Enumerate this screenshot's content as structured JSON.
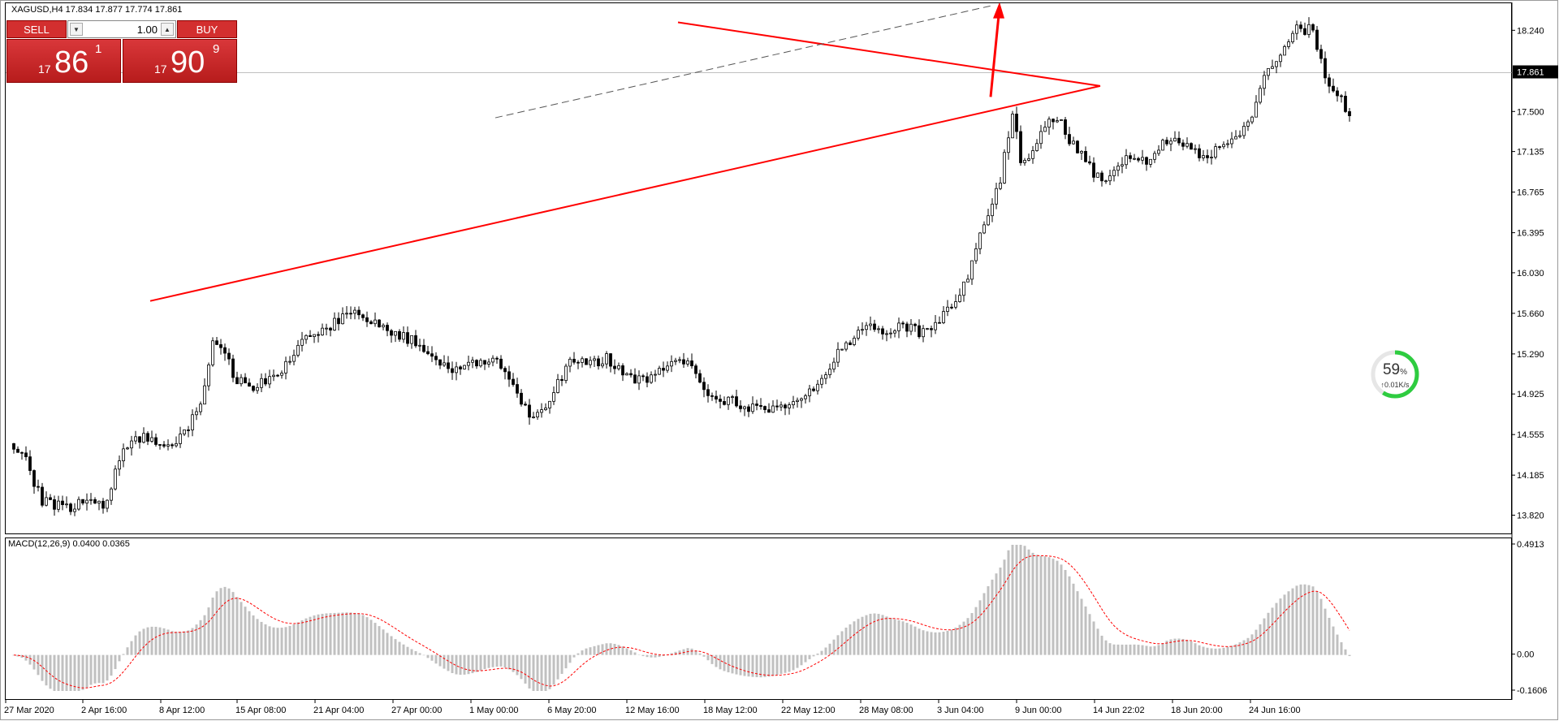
{
  "window": {
    "symbol_line": "XAGUSD,H4  17.834 17.877 17.774 17.861"
  },
  "trade_panel": {
    "sell_label": "SELL",
    "buy_label": "BUY",
    "lot_value": "1.00",
    "sell_price": {
      "prefix": "17",
      "big": "86",
      "sup": "1"
    },
    "buy_price": {
      "prefix": "17",
      "big": "90",
      "sup": "9"
    }
  },
  "indicator": {
    "label": "MACD(12,26,9) 0.0400 0.0365"
  },
  "network_widget": {
    "percent": "59",
    "percent_sign": "%",
    "speed": "↑0.01K/s",
    "level": 0.59
  },
  "colors": {
    "trendline": "#ff0000",
    "candle": "#000000",
    "macd_hist": "#c0c0c0",
    "signal": "#ff0000",
    "dashed_channel": "#555555",
    "bid_line": "#c0c0c0"
  },
  "chart_data": {
    "type": "candlestick",
    "symbol": "XAGUSD",
    "timeframe": "H4",
    "ohlc_header": {
      "open": 17.834,
      "high": 17.877,
      "low": 17.774,
      "close": 17.861
    },
    "current_price": 17.861,
    "price_ticks": [
      "18.240",
      "17.500",
      "17.135",
      "16.765",
      "16.395",
      "16.030",
      "15.660",
      "15.290",
      "14.925",
      "14.555",
      "14.185",
      "13.820"
    ],
    "price_range": [
      13.72,
      18.42
    ],
    "time_ticks": [
      "27 Mar 2020",
      "2 Apr 16:00",
      "8 Apr 12:00",
      "15 Apr 08:00",
      "21 Apr 04:00",
      "27 Apr 00:00",
      "1 May 00:00",
      "6 May 20:00",
      "12 May 16:00",
      "18 May 12:00",
      "22 May 12:00",
      "28 May 08:00",
      "3 Jun 04:00",
      "9 Jun 00:00",
      "14 Jun 22:02",
      "18 Jun 20:00",
      "24 Jun 16:00"
    ],
    "bar_count": 330,
    "price_path": [
      [
        0,
        14.48
      ],
      [
        3,
        14.4
      ],
      [
        8,
        13.95
      ],
      [
        15,
        13.9
      ],
      [
        20,
        14.0
      ],
      [
        23,
        13.86
      ],
      [
        27,
        14.35
      ],
      [
        31,
        14.55
      ],
      [
        35,
        14.5
      ],
      [
        40,
        14.45
      ],
      [
        44,
        14.6
      ],
      [
        48,
        14.98
      ],
      [
        50,
        15.4
      ],
      [
        53,
        15.28
      ],
      [
        56,
        15.05
      ],
      [
        60,
        15.0
      ],
      [
        64,
        15.05
      ],
      [
        68,
        15.2
      ],
      [
        72,
        15.4
      ],
      [
        75,
        15.48
      ],
      [
        79,
        15.55
      ],
      [
        83,
        15.65
      ],
      [
        86,
        15.68
      ],
      [
        89,
        15.6
      ],
      [
        93,
        15.5
      ],
      [
        97,
        15.45
      ],
      [
        101,
        15.4
      ],
      [
        105,
        15.25
      ],
      [
        109,
        15.15
      ],
      [
        113,
        15.2
      ],
      [
        117,
        15.25
      ],
      [
        121,
        15.2
      ],
      [
        125,
        14.95
      ],
      [
        128,
        14.7
      ],
      [
        131,
        14.75
      ],
      [
        135,
        15.05
      ],
      [
        139,
        15.25
      ],
      [
        143,
        15.2
      ],
      [
        147,
        15.25
      ],
      [
        151,
        15.15
      ],
      [
        155,
        15.05
      ],
      [
        159,
        15.1
      ],
      [
        163,
        15.2
      ],
      [
        167,
        15.25
      ],
      [
        170,
        15.05
      ],
      [
        173,
        14.9
      ],
      [
        177,
        14.88
      ],
      [
        181,
        14.82
      ],
      [
        185,
        14.78
      ],
      [
        189,
        14.8
      ],
      [
        192,
        14.8
      ],
      [
        196,
        14.95
      ],
      [
        200,
        15.05
      ],
      [
        204,
        15.3
      ],
      [
        208,
        15.45
      ],
      [
        212,
        15.55
      ],
      [
        216,
        15.5
      ],
      [
        220,
        15.55
      ],
      [
        224,
        15.5
      ],
      [
        228,
        15.58
      ],
      [
        232,
        15.72
      ],
      [
        236,
        16.0
      ],
      [
        240,
        16.5
      ],
      [
        244,
        16.88
      ],
      [
        247,
        17.5
      ],
      [
        249,
        17.05
      ],
      [
        252,
        17.15
      ],
      [
        255,
        17.4
      ],
      [
        258,
        17.45
      ],
      [
        262,
        17.2
      ],
      [
        266,
        17.0
      ],
      [
        269,
        16.85
      ],
      [
        273,
        17.05
      ],
      [
        277,
        17.08
      ],
      [
        281,
        17.05
      ],
      [
        285,
        17.25
      ],
      [
        289,
        17.2
      ],
      [
        293,
        17.1
      ],
      [
        297,
        17.15
      ],
      [
        301,
        17.25
      ],
      [
        305,
        17.4
      ],
      [
        309,
        17.8
      ],
      [
        313,
        18.05
      ],
      [
        317,
        18.25
      ],
      [
        321,
        18.25
      ],
      [
        324,
        17.8
      ],
      [
        327,
        17.65
      ],
      [
        330,
        17.5
      ]
    ],
    "trendlines": [
      {
        "name": "support",
        "from": {
          "bar": 34,
          "price": 15.78
        },
        "to": {
          "bar": 268,
          "price": 17.74
        }
      },
      {
        "name": "resistance",
        "from": {
          "bar": 164,
          "price": 18.32
        },
        "to": {
          "bar": 268,
          "price": 17.74
        }
      },
      {
        "name": "upper-channel-dashed",
        "from": {
          "bar": 119,
          "price": 17.45
        },
        "to": {
          "bar": 241,
          "price": 18.47
        }
      }
    ],
    "arrow": {
      "from_bar": 241,
      "from_price": 17.64,
      "to_bar": 243,
      "to_price": 18.46
    },
    "macd": {
      "label": "MACD(12,26,9)",
      "main": 0.04,
      "signal": 0.0365,
      "ticks": [
        "0.4913",
        "0.00",
        "-0.1606"
      ],
      "range": [
        -0.1606,
        0.4913
      ]
    }
  }
}
